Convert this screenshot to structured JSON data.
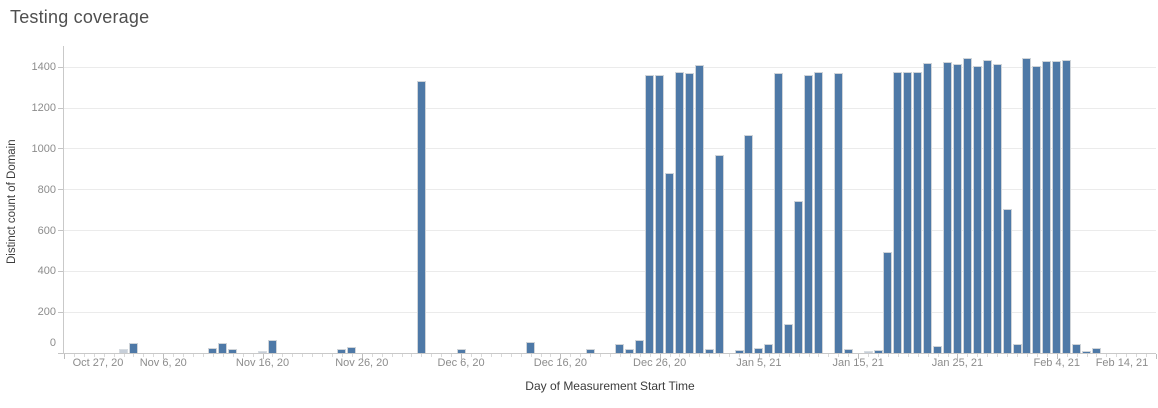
{
  "title": "Testing coverage",
  "style": {
    "bar_color": "#4e79a7",
    "bar_muted_color": "#c7cfd9",
    "grid_color": "#ebebeb",
    "axis_line_color": "#c9c9c9",
    "tick_label_color": "#8c8c8c",
    "axis_title_color": "#3c3c3c",
    "title_color": "#4f4f4f"
  },
  "chart_data": {
    "type": "bar",
    "title": "Testing coverage",
    "xlabel": "Day of Measurement Start Time",
    "ylabel": "Distinct count of Domain",
    "legend": "none",
    "grid": "horizontal",
    "bar_unit": "1 day",
    "x_start": "2020-10-27",
    "x_domain_days": 110,
    "x_tick_interval_days": 10,
    "x_tick_labels": [
      "Oct 27, 20",
      "Nov 6, 20",
      "Nov 16, 20",
      "Nov 26, 20",
      "Dec 6, 20",
      "Dec 16, 20",
      "Dec 26, 20",
      "Jan 5, 21",
      "Jan 15, 21",
      "Jan 25, 21",
      "Feb 4, 21",
      "Feb 14, 21"
    ],
    "y_ticks": [
      0,
      200,
      400,
      600,
      800,
      1000,
      1200,
      1400
    ],
    "ylim": [
      0,
      1480
    ],
    "points": [
      {
        "date": "2020-11-02",
        "value": 20,
        "muted": true
      },
      {
        "date": "2020-11-03",
        "value": 50
      },
      {
        "date": "2020-11-11",
        "value": 25
      },
      {
        "date": "2020-11-12",
        "value": 50
      },
      {
        "date": "2020-11-13",
        "value": 20
      },
      {
        "date": "2020-11-16",
        "value": 10,
        "muted": true
      },
      {
        "date": "2020-11-17",
        "value": 65
      },
      {
        "date": "2020-11-24",
        "value": 18
      },
      {
        "date": "2020-11-25",
        "value": 28
      },
      {
        "date": "2020-12-02",
        "value": 1335
      },
      {
        "date": "2020-12-06",
        "value": 20
      },
      {
        "date": "2020-12-13",
        "value": 55
      },
      {
        "date": "2020-12-19",
        "value": 20
      },
      {
        "date": "2020-12-22",
        "value": 45
      },
      {
        "date": "2020-12-23",
        "value": 18
      },
      {
        "date": "2020-12-24",
        "value": 65
      },
      {
        "date": "2020-12-25",
        "value": 1360
      },
      {
        "date": "2020-12-26",
        "value": 1360
      },
      {
        "date": "2020-12-27",
        "value": 880
      },
      {
        "date": "2020-12-28",
        "value": 1375
      },
      {
        "date": "2020-12-29",
        "value": 1370
      },
      {
        "date": "2020-12-30",
        "value": 1410
      },
      {
        "date": "2020-12-31",
        "value": 18
      },
      {
        "date": "2021-01-01",
        "value": 970
      },
      {
        "date": "2021-01-03",
        "value": 15
      },
      {
        "date": "2021-01-04",
        "value": 1070
      },
      {
        "date": "2021-01-05",
        "value": 25
      },
      {
        "date": "2021-01-06",
        "value": 45
      },
      {
        "date": "2021-01-07",
        "value": 1370
      },
      {
        "date": "2021-01-08",
        "value": 140
      },
      {
        "date": "2021-01-09",
        "value": 745
      },
      {
        "date": "2021-01-10",
        "value": 1360
      },
      {
        "date": "2021-01-11",
        "value": 1375
      },
      {
        "date": "2021-01-13",
        "value": 1370
      },
      {
        "date": "2021-01-14",
        "value": 20
      },
      {
        "date": "2021-01-16",
        "value": 10,
        "muted": true
      },
      {
        "date": "2021-01-17",
        "value": 15
      },
      {
        "date": "2021-01-18",
        "value": 495
      },
      {
        "date": "2021-01-19",
        "value": 1375
      },
      {
        "date": "2021-01-20",
        "value": 1375
      },
      {
        "date": "2021-01-21",
        "value": 1375
      },
      {
        "date": "2021-01-22",
        "value": 1420
      },
      {
        "date": "2021-01-23",
        "value": 35
      },
      {
        "date": "2021-01-24",
        "value": 1425
      },
      {
        "date": "2021-01-25",
        "value": 1415
      },
      {
        "date": "2021-01-26",
        "value": 1445
      },
      {
        "date": "2021-01-27",
        "value": 1405
      },
      {
        "date": "2021-01-28",
        "value": 1435
      },
      {
        "date": "2021-01-29",
        "value": 1415
      },
      {
        "date": "2021-01-30",
        "value": 705
      },
      {
        "date": "2021-01-31",
        "value": 45
      },
      {
        "date": "2021-02-01",
        "value": 1445
      },
      {
        "date": "2021-02-02",
        "value": 1405
      },
      {
        "date": "2021-02-03",
        "value": 1430
      },
      {
        "date": "2021-02-04",
        "value": 1430
      },
      {
        "date": "2021-02-05",
        "value": 1435
      },
      {
        "date": "2021-02-06",
        "value": 45
      },
      {
        "date": "2021-02-07",
        "value": 10
      },
      {
        "date": "2021-02-08",
        "value": 25
      }
    ]
  }
}
